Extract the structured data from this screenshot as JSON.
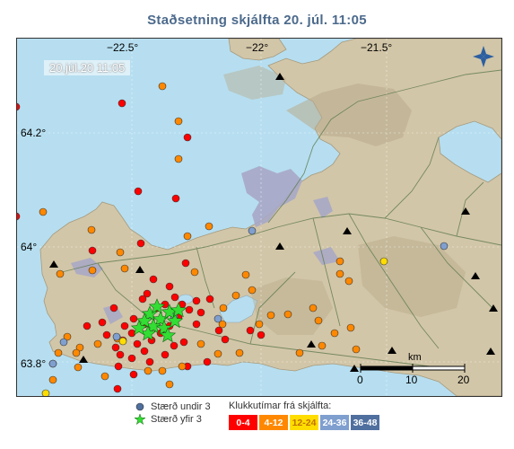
{
  "title": "Staðsetning skjálfta   20. júl. 11:05",
  "timestamp_label": "20.júl.20  11:05",
  "longitude_labels": [
    "−22.5°",
    "−22°",
    "−21.5°"
  ],
  "latitude_labels": [
    "64.2°",
    "64°",
    "63.8°"
  ],
  "scale_bar": {
    "unit": "km",
    "ticks": [
      "0",
      "10",
      "20"
    ]
  },
  "legend": {
    "below_3": "Stærð undir 3",
    "above_3": "Stærð yfir 3",
    "age_title": "Klukkutímar frá skjálfta:",
    "age_bins": [
      {
        "label": "0-4",
        "color": "#ff0000",
        "text_color": "#ffffff"
      },
      {
        "label": "4-12",
        "color": "#ff8800",
        "text_color": "#ffffff"
      },
      {
        "label": "12-24",
        "color": "#ffdd00",
        "text_color": "#c07000"
      },
      {
        "label": "24-36",
        "color": "#7f9fcf",
        "text_color": "#ffffff"
      },
      {
        "label": "36-48",
        "color": "#4f6f9f",
        "text_color": "#ffffff"
      }
    ]
  },
  "colors": {
    "sea": "#b6def0",
    "land": "#d2c6a8",
    "glacier": "#a7a7c7",
    "marker_outline": "#333333",
    "star": "#33dd33"
  }
}
